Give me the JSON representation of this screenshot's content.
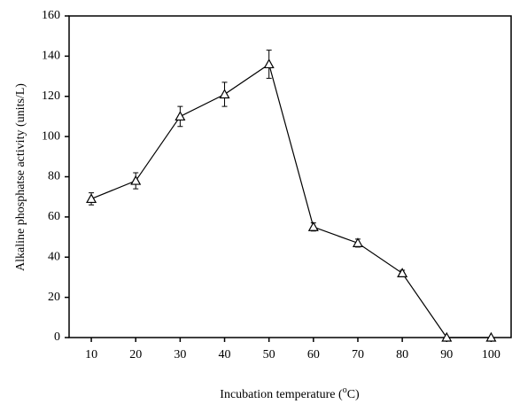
{
  "chart_data": {
    "type": "line",
    "y_label": "Alkaline phosphatse activity (units/L)",
    "x_label": [
      "Incubation temperature (",
      "o",
      "C)"
    ],
    "x": [
      10,
      20,
      30,
      40,
      50,
      60,
      70,
      80,
      90,
      100
    ],
    "series": [
      {
        "color": "#000000",
        "values": [
          69,
          78,
          110,
          121,
          136,
          55,
          47,
          32,
          0,
          0
        ],
        "errors": [
          3,
          4,
          5,
          6,
          7,
          2,
          2,
          1.5,
          0,
          0
        ]
      }
    ],
    "xlim": [
      5,
      104.5
    ],
    "xticks": [
      10,
      20,
      30,
      40,
      50,
      60,
      70,
      80,
      90,
      100
    ],
    "ylim": [
      0,
      160
    ],
    "yticks": [
      0,
      20,
      40,
      60,
      80,
      100,
      120,
      140,
      160
    ],
    "marker": "triangle-open",
    "grid": false
  }
}
